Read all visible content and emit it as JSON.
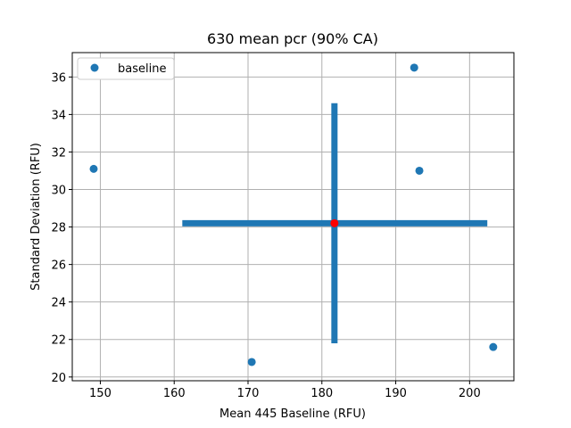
{
  "chart_data": {
    "type": "scatter",
    "title": "630 mean pcr (90% CA)",
    "xlabel": "Mean 445 Baseline (RFU)",
    "ylabel": "Standard Deviation (RFU)",
    "xlim": [
      146.2,
      206.0
    ],
    "ylim": [
      19.8,
      37.3
    ],
    "xticks": [
      150,
      160,
      170,
      180,
      190,
      200
    ],
    "yticks": [
      20,
      22,
      24,
      26,
      28,
      30,
      32,
      34,
      36
    ],
    "grid": true,
    "legend_position": "top-left",
    "series": [
      {
        "name": "baseline",
        "color": "#1f77b4",
        "points": [
          {
            "x": 149.1,
            "y": 31.1
          },
          {
            "x": 192.5,
            "y": 36.5
          },
          {
            "x": 193.2,
            "y": 31.0
          },
          {
            "x": 170.5,
            "y": 20.8
          },
          {
            "x": 203.2,
            "y": 21.6
          }
        ]
      }
    ],
    "mean_point": {
      "x": 181.7,
      "y": 28.2,
      "color": "#ff0000"
    },
    "error_bars": {
      "color": "#1f77b4",
      "x_range": [
        161.1,
        202.4
      ],
      "y_range": [
        21.8,
        34.6
      ]
    }
  }
}
